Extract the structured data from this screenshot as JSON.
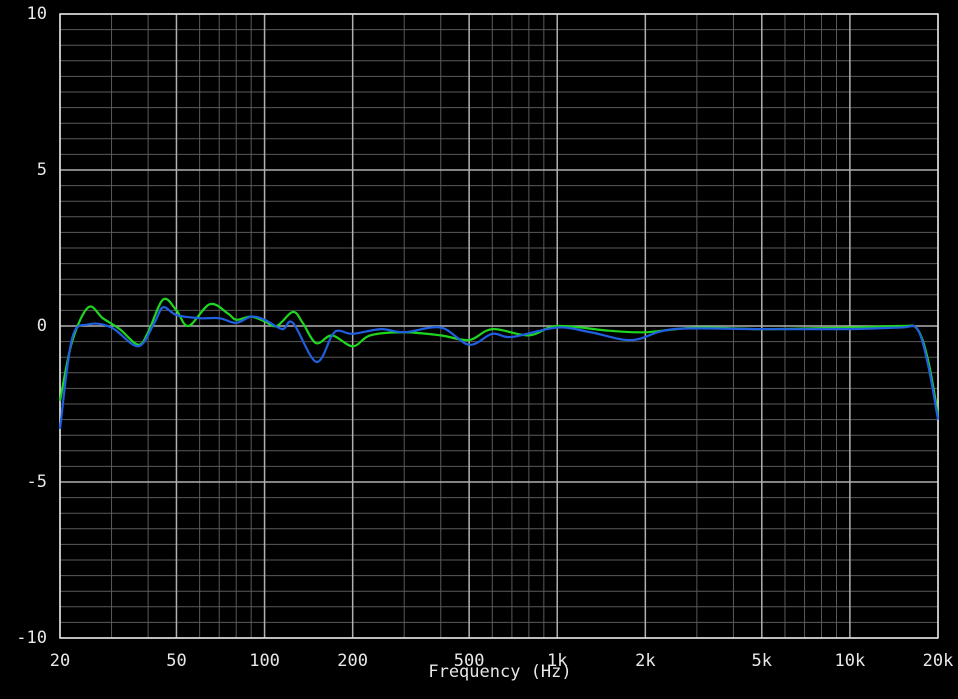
{
  "chart_data": {
    "type": "line",
    "x_label": "Frequency (Hz)",
    "x_scale": "log",
    "xlim": [
      20,
      20000
    ],
    "ylim": [
      -10,
      10
    ],
    "xticks": [
      20,
      50,
      100,
      200,
      500,
      {
        "value": 1000,
        "label": "1k"
      },
      {
        "value": 2000,
        "label": "2k"
      },
      {
        "value": 5000,
        "label": "5k"
      },
      {
        "value": 10000,
        "label": "10k"
      },
      {
        "value": 20000,
        "label": "20k"
      }
    ],
    "yticks": [
      -10,
      -5,
      0,
      5,
      10
    ],
    "grid": true,
    "minor_grid": true,
    "y_minor_step": 0.5,
    "series": [
      {
        "color": "#1fd61f",
        "x": [
          20,
          22,
          25,
          28,
          32,
          37,
          40,
          45,
          50,
          55,
          65,
          75,
          80,
          90,
          100,
          110,
          125,
          135,
          150,
          170,
          200,
          230,
          300,
          400,
          500,
          600,
          800,
          1000,
          1500,
          2000,
          3000,
          5000,
          10000,
          15000,
          17000,
          18500,
          20000
        ],
        "values": [
          -2.4,
          -0.5,
          0.6,
          0.25,
          -0.1,
          -0.6,
          -0.2,
          0.85,
          0.5,
          0,
          0.7,
          0.4,
          0.2,
          0.3,
          0.15,
          0,
          0.45,
          0.1,
          -0.55,
          -0.3,
          -0.65,
          -0.3,
          -0.2,
          -0.3,
          -0.45,
          -0.1,
          -0.3,
          0,
          -0.15,
          -0.2,
          -0.05,
          -0.1,
          -0.05,
          0,
          -0.1,
          -1.1,
          -2.85
        ]
      },
      {
        "color": "#1f5fe0",
        "x": [
          20,
          22,
          25,
          30,
          37,
          42,
          45,
          50,
          60,
          70,
          80,
          90,
          100,
          115,
          125,
          150,
          170,
          180,
          200,
          250,
          300,
          400,
          500,
          600,
          700,
          1000,
          1300,
          1800,
          2500,
          5000,
          10000,
          15000,
          17000,
          18500,
          20000
        ],
        "values": [
          -3.3,
          -0.4,
          0.05,
          -0.05,
          -0.65,
          0.1,
          0.6,
          0.35,
          0.25,
          0.25,
          0.1,
          0.3,
          0.2,
          -0.1,
          0.1,
          -1.15,
          -0.3,
          -0.15,
          -0.25,
          -0.1,
          -0.2,
          -0.05,
          -0.6,
          -0.25,
          -0.35,
          -0.05,
          -0.2,
          -0.45,
          -0.1,
          -0.1,
          -0.1,
          -0.05,
          -0.1,
          -1.25,
          -3.0
        ]
      }
    ]
  }
}
